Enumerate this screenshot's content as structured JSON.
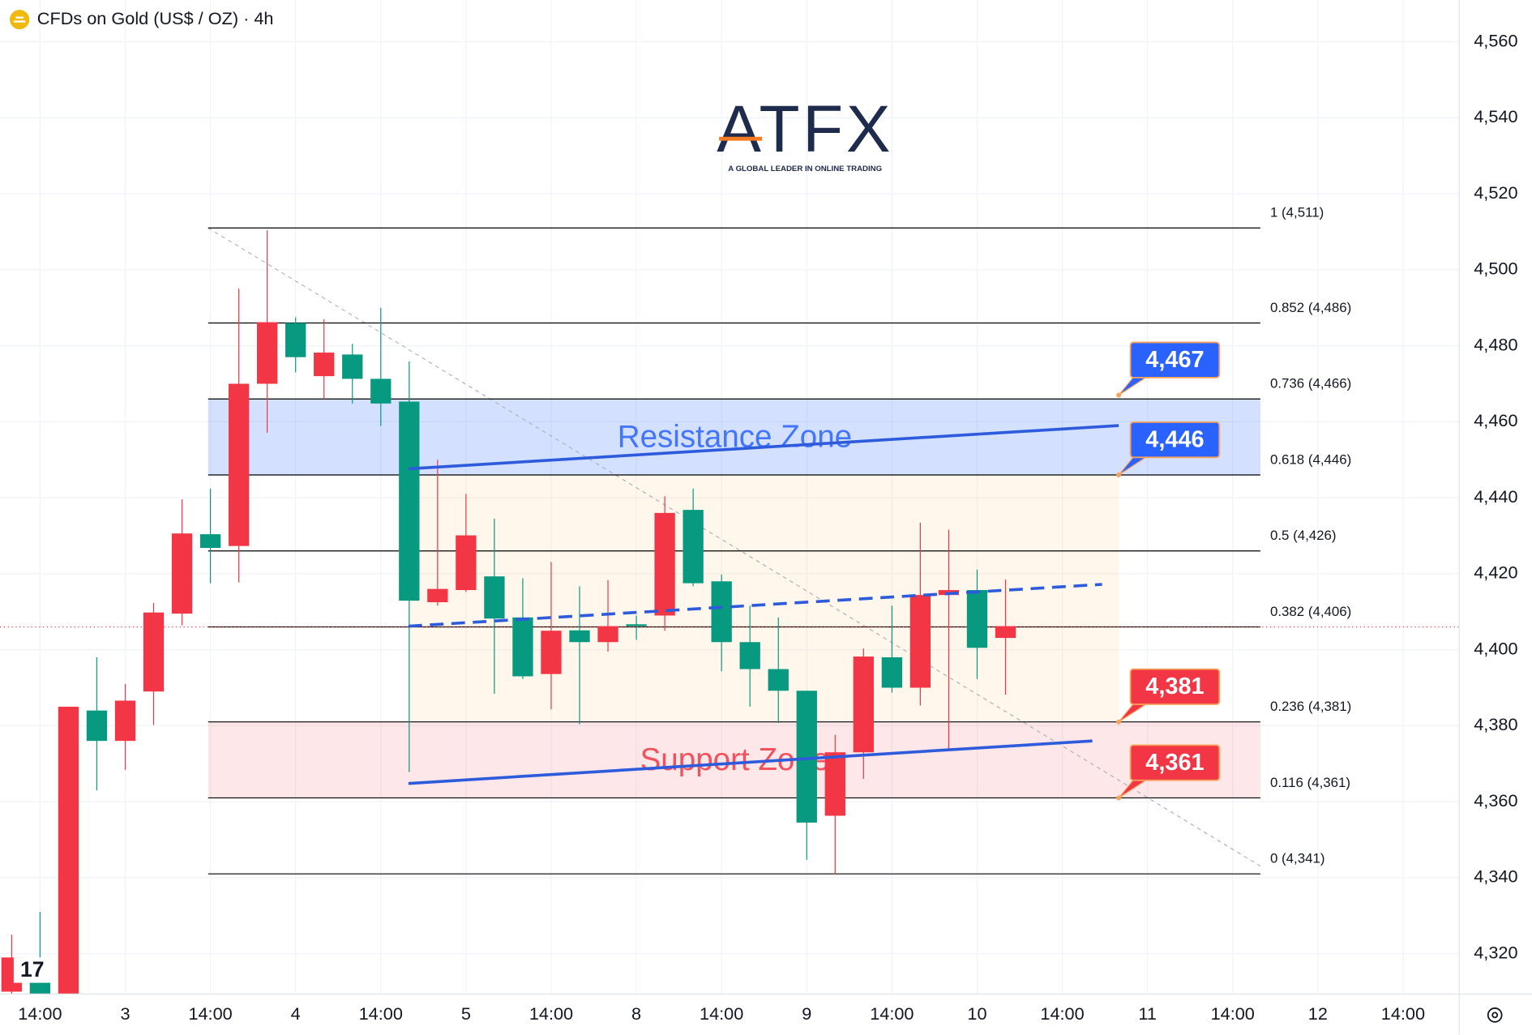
{
  "chart_data": {
    "type": "candlestick",
    "title": "CFDs on Gold (US$ / OZ) · 4h",
    "logo": {
      "name": "ATFX",
      "tagline": "A GLOBAL LEADER IN ONLINE TRADING"
    },
    "open": [
      4310,
      4315,
      4300,
      4384,
      4376,
      4389,
      4409.5,
      4430.4,
      4427.3,
      4470,
      4486,
      4472,
      4477.7,
      4471.3,
      4465.3,
      4412.5,
      4415.7,
      4419.3,
      4408.5,
      4393.6,
      4405.1,
      4402,
      4406.7,
      4409,
      4436.8,
      4418,
      4402,
      4394.9,
      4389.2,
      4356.3,
      4373,
      4398,
      4390,
      4414.4,
      4415.7,
      4403.1
    ],
    "high": [
      4325,
      4331,
      4385,
      4398,
      4391,
      4412.3,
      4439.6,
      4442.4,
      4495,
      4510.4,
      4487.5,
      4487,
      4480.5,
      4490,
      4475.9,
      4450,
      4441,
      4434.5,
      4418.8,
      4423.1,
      4416.7,
      4418.3,
      4409,
      4440.4,
      4442.4,
      4419.8,
      4411.6,
      4408.5,
      4389.2,
      4377.6,
      4400.3,
      4411.6,
      4433.4,
      4431.6,
      4421.1,
      4418.5
    ],
    "low": [
      4305,
      4300,
      4300,
      4363,
      4368.4,
      4380.2,
      4406.4,
      4417.5,
      4417.7,
      4457.1,
      4473,
      4466,
      4464.8,
      4458.9,
      4367.8,
      4411.6,
      4415.2,
      4388.4,
      4392.3,
      4384.3,
      4380.4,
      4399.5,
      4402.6,
      4405,
      4416.7,
      4394.3,
      4385,
      4380.7,
      4344.7,
      4340.8,
      4366,
      4388.7,
      4385.3,
      4373.5,
      4392.3,
      4388.2
    ],
    "close": [
      4319,
      4308,
      4385,
      4376,
      4386.6,
      4409.8,
      4430.6,
      4426.8,
      4470,
      4486.2,
      4477,
      4478.2,
      4471.3,
      4464.8,
      4412.9,
      4416,
      4430.1,
      4408.2,
      4393,
      4405,
      4402,
      4406.2,
      4406.2,
      4436,
      4417.5,
      4402,
      4394.9,
      4389.2,
      4354.5,
      4373,
      4398.2,
      4390,
      4414.4,
      4415.7,
      4400.5,
      4406.2
    ],
    "up_color": "#f23645",
    "down_color": "#089981",
    "xlim": [
      -0.41,
      50.96
    ],
    "xticks": [
      {
        "value": 1,
        "label": "14:00"
      },
      {
        "value": 4,
        "label": "3"
      },
      {
        "value": 7,
        "label": "14:00"
      },
      {
        "value": 10,
        "label": "4"
      },
      {
        "value": 13,
        "label": "14:00"
      },
      {
        "value": 16,
        "label": "5"
      },
      {
        "value": 19,
        "label": "14:00"
      },
      {
        "value": 22,
        "label": "8"
      },
      {
        "value": 25,
        "label": "14:00"
      },
      {
        "value": 28,
        "label": "9"
      },
      {
        "value": 31,
        "label": "14:00"
      },
      {
        "value": 34,
        "label": "10"
      },
      {
        "value": 37,
        "label": "14:00"
      },
      {
        "value": 40,
        "label": "11"
      },
      {
        "value": 43,
        "label": "14:00"
      },
      {
        "value": 46,
        "label": "12"
      },
      {
        "value": 49,
        "label": "14:00"
      }
    ],
    "ylim": [
      4309.5,
      4571
    ],
    "yticks": [
      {
        "value": 4320,
        "label": "4,320"
      },
      {
        "value": 4340,
        "label": "4,340"
      },
      {
        "value": 4360,
        "label": "4,360"
      },
      {
        "value": 4380,
        "label": "4,380"
      },
      {
        "value": 4400,
        "label": "4,400"
      },
      {
        "value": 4420,
        "label": "4,420"
      },
      {
        "value": 4440,
        "label": "4,440"
      },
      {
        "value": 4460,
        "label": "4,460"
      },
      {
        "value": 4480,
        "label": "4,480"
      },
      {
        "value": 4500,
        "label": "4,500"
      },
      {
        "value": 4520,
        "label": "4,520"
      },
      {
        "value": 4540,
        "label": "4,540"
      },
      {
        "value": 4560,
        "label": "4,560"
      }
    ],
    "grid": true,
    "fib_levels": {
      "values": [
        4511,
        4486,
        4466,
        4446,
        4426,
        4406,
        4381,
        4361,
        4341
      ],
      "value_labels": [
        "1 (4,511)",
        "0.852 (4,486)",
        "0.736 (4,466)",
        "0.618 (4,446)",
        "0.5 (4,426)",
        "0.382 (4,406)",
        "0.236 (4,381)",
        "0.116 (4,361)",
        "0 (4,341)"
      ]
    },
    "zones": [
      {
        "name": "Resistance Zone",
        "range": [
          4446,
          4466
        ],
        "color": "#2962ff"
      },
      {
        "name": "Support Zone",
        "range": [
          4361,
          4381
        ],
        "color": "#f23645"
      }
    ],
    "range_box": {
      "range": [
        4381,
        4446
      ],
      "color": "#ff9800"
    },
    "trendlines": [
      {
        "values": [
          4447.6,
          4459
        ],
        "style": "solid"
      },
      {
        "values": [
          4364.8,
          4376
        ],
        "style": "solid"
      },
      {
        "values": [
          4406.2,
          4417.2
        ],
        "style": "dashed"
      }
    ],
    "trendline_color": "#2e5bdc",
    "price_tags": {
      "values": [
        4467,
        4446,
        4381,
        4361
      ],
      "value_labels": [
        "4,467",
        "4,446",
        "4,381",
        "4,361"
      ],
      "colors": [
        "#2962ff",
        "#2962ff",
        "#f23645",
        "#f23645"
      ]
    },
    "last_price": 4406
  }
}
